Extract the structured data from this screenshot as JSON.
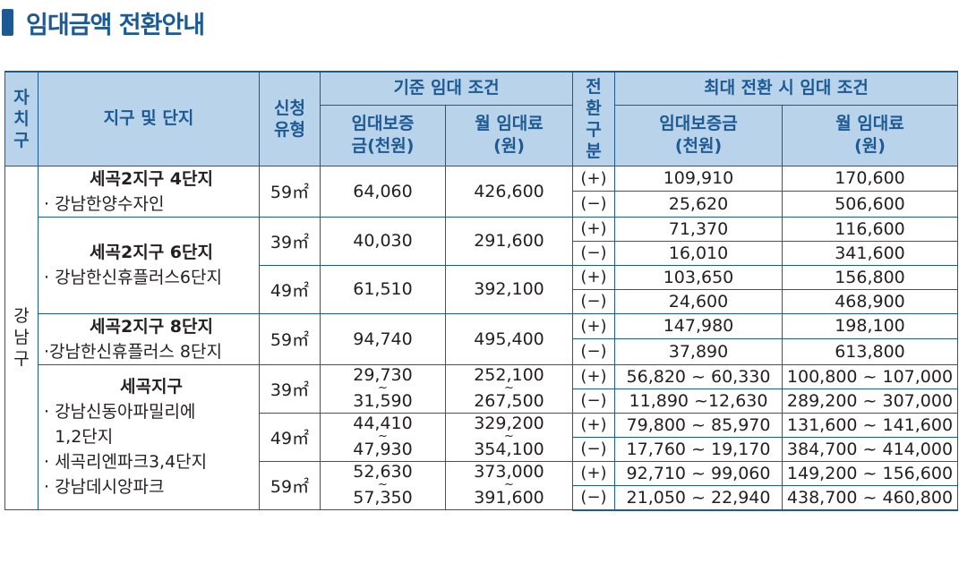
{
  "title": "임대금액 전환안내",
  "header": {
    "district": "자\n치\n구",
    "complex": "지구 및 단지",
    "type": "신청\n유형",
    "base_group": "기준 임대 조건",
    "base_deposit": "임대보증\n금(천원)",
    "base_rent": "월 임대료\n(원)",
    "conv": "전\n환\n구\n분",
    "max_group": "최대 전환 시 임대 조건",
    "max_deposit": "임대보증금\n(천원)",
    "max_rent": "월 임대료\n(원)"
  },
  "district": "강\n남\n구",
  "tilde": "~",
  "groups": [
    {
      "name": "세곡2지구 4단지",
      "items": [
        "· 강남한양수자인"
      ],
      "types": [
        {
          "area": "59㎡",
          "deposit": "64,060",
          "rent": "426,600",
          "rows": [
            {
              "sign": "(+)",
              "deposit": "109,910",
              "rent": "170,600"
            },
            {
              "sign": "(−)",
              "deposit": "25,620",
              "rent": "506,600"
            }
          ]
        }
      ]
    },
    {
      "name": "세곡2지구 6단지",
      "items": [
        "· 강남한신휴플러스6단지"
      ],
      "types": [
        {
          "area": "39㎡",
          "deposit": "40,030",
          "rent": "291,600",
          "rows": [
            {
              "sign": "(+)",
              "deposit": "71,370",
              "rent": "116,600"
            },
            {
              "sign": "(−)",
              "deposit": "16,010",
              "rent": "341,600"
            }
          ]
        },
        {
          "area": "49㎡",
          "deposit": "61,510",
          "rent": "392,100",
          "rows": [
            {
              "sign": "(+)",
              "deposit": "103,650",
              "rent": "156,800"
            },
            {
              "sign": "(−)",
              "deposit": "24,600",
              "rent": "468,900"
            }
          ]
        }
      ]
    },
    {
      "name": "세곡2지구 8단지",
      "items": [
        "·강남한신휴플러스 8단지"
      ],
      "types": [
        {
          "area": "59㎡",
          "deposit": "94,740",
          "rent": "495,400",
          "rows": [
            {
              "sign": "(+)",
              "deposit": "147,980",
              "rent": "198,100"
            },
            {
              "sign": "(−)",
              "deposit": "37,890",
              "rent": "613,800"
            }
          ]
        }
      ]
    },
    {
      "name": "세곡지구",
      "items": [
        "· 강남신동아파밀리에\n  1,2단지",
        "· 세곡리엔파크3,4단지",
        "· 강남데시앙파크"
      ],
      "types": [
        {
          "area": "39㎡",
          "deposit_from": "29,730",
          "deposit_to": "31,590",
          "rent_from": "252,100",
          "rent_to": "267,500",
          "rows": [
            {
              "sign": "(+)",
              "deposit": "56,820 ~ 60,330",
              "rent": "100,800 ~ 107,000"
            },
            {
              "sign": "(−)",
              "deposit": "11,890 ~12,630",
              "rent": "289,200 ~ 307,000"
            }
          ]
        },
        {
          "area": "49㎡",
          "deposit_from": "44,410",
          "deposit_to": "47,930",
          "rent_from": "329,200",
          "rent_to": "354,100",
          "rows": [
            {
              "sign": "(+)",
              "deposit": "79,800 ~ 85,970",
              "rent": "131,600 ~ 141,600"
            },
            {
              "sign": "(−)",
              "deposit": "17,760 ~ 19,170",
              "rent": "384,700 ~ 414,000"
            }
          ]
        },
        {
          "area": "59㎡",
          "deposit_from": "52,630",
          "deposit_to": "57,350",
          "rent_from": "373,000",
          "rent_to": "391,600",
          "rows": [
            {
              "sign": "(+)",
              "deposit": "92,710 ~ 99,060",
              "rent": "149,200 ~ 156,600"
            },
            {
              "sign": "(−)",
              "deposit": "21,050 ~ 22,940",
              "rent": "438,700 ~ 460,800"
            }
          ]
        }
      ]
    }
  ]
}
